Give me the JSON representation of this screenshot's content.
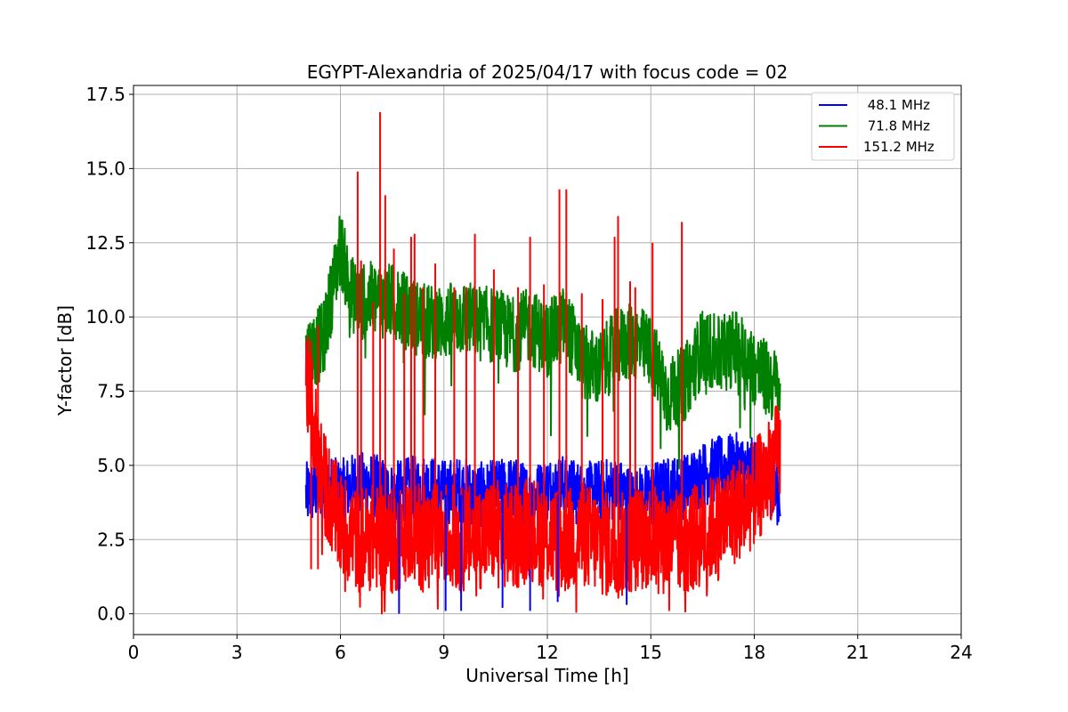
{
  "chart_data": {
    "type": "line",
    "title": "EGYPT-Alexandria of 2025/04/17 with focus code = 02",
    "xlabel": "Universal Time [h]",
    "ylabel": "Y-factor [dB]",
    "xlim": [
      0,
      24
    ],
    "ylim": [
      -0.7,
      17.8
    ],
    "xticks": [
      0,
      3,
      6,
      9,
      12,
      15,
      18,
      21,
      24
    ],
    "xtick_labels": [
      "0",
      "3",
      "6",
      "9",
      "12",
      "15",
      "18",
      "21",
      "24"
    ],
    "yticks": [
      0.0,
      2.5,
      5.0,
      7.5,
      10.0,
      12.5,
      15.0,
      17.5
    ],
    "ytick_labels": [
      "0.0",
      "2.5",
      "5.0",
      "7.5",
      "10.0",
      "12.5",
      "15.0",
      "17.5"
    ],
    "grid": true,
    "legend_position": "top-right",
    "x_start": 5.0,
    "x_end": 18.75,
    "series": [
      {
        "name": " 48.1 MHz",
        "color": "#0000ff",
        "x": [
          5.0,
          5.5,
          6.0,
          6.5,
          7.0,
          7.5,
          8.0,
          8.5,
          9.0,
          9.5,
          10.0,
          10.5,
          11.0,
          11.5,
          12.0,
          12.5,
          13.0,
          13.5,
          14.0,
          14.5,
          15.0,
          15.5,
          16.0,
          16.5,
          17.0,
          17.5,
          18.0,
          18.75
        ],
        "y": [
          4.0,
          4.3,
          4.1,
          4.4,
          4.3,
          4.0,
          4.2,
          4.3,
          4.1,
          4.2,
          4.0,
          4.1,
          4.2,
          3.9,
          4.2,
          4.3,
          4.0,
          4.1,
          4.2,
          3.8,
          4.0,
          4.2,
          4.3,
          4.7,
          4.9,
          5.0,
          4.8,
          4.0
        ]
      },
      {
        "name": " 71.8 MHz",
        "color": "#008000",
        "x": [
          5.0,
          5.5,
          6.0,
          6.3,
          6.6,
          7.0,
          7.5,
          8.0,
          8.5,
          9.0,
          9.5,
          10.0,
          10.5,
          11.0,
          11.5,
          12.0,
          12.5,
          13.0,
          13.5,
          14.0,
          14.5,
          15.0,
          15.5,
          16.0,
          16.5,
          17.0,
          17.5,
          18.0,
          18.75
        ],
        "y": [
          8.7,
          9.2,
          12.4,
          10.8,
          10.5,
          10.6,
          10.5,
          10.1,
          9.8,
          9.8,
          10.0,
          9.8,
          9.7,
          9.4,
          9.7,
          9.2,
          9.8,
          8.5,
          8.2,
          9.0,
          9.2,
          8.8,
          7.3,
          7.8,
          9.0,
          8.7,
          9.0,
          8.3,
          7.5
        ]
      },
      {
        "name": "151.2 MHz",
        "color": "#ff0000",
        "x": [
          5.0,
          5.5,
          6.0,
          6.5,
          7.0,
          7.5,
          8.0,
          8.5,
          9.0,
          9.5,
          10.0,
          10.5,
          11.0,
          11.5,
          12.0,
          12.5,
          13.0,
          13.5,
          14.0,
          14.5,
          15.0,
          15.5,
          16.0,
          16.5,
          17.0,
          17.5,
          18.0,
          18.75
        ],
        "y": [
          8.0,
          4.5,
          3.0,
          2.5,
          2.6,
          2.4,
          2.8,
          2.5,
          2.7,
          2.5,
          2.6,
          2.8,
          2.5,
          2.9,
          2.6,
          2.4,
          2.7,
          2.4,
          2.2,
          2.5,
          2.6,
          2.4,
          2.4,
          2.7,
          3.0,
          3.5,
          4.0,
          5.5
        ]
      }
    ],
    "spikes_151_2": [
      {
        "x": 5.15,
        "y": 9.2
      },
      {
        "x": 5.35,
        "y": 9.7
      },
      {
        "x": 6.5,
        "y": 14.9
      },
      {
        "x": 6.6,
        "y": 11.9
      },
      {
        "x": 6.95,
        "y": 10.5
      },
      {
        "x": 7.15,
        "y": 16.9
      },
      {
        "x": 7.3,
        "y": 14.1
      },
      {
        "x": 7.55,
        "y": 12.3
      },
      {
        "x": 7.85,
        "y": 10.8
      },
      {
        "x": 8.05,
        "y": 12.7
      },
      {
        "x": 8.15,
        "y": 12.8
      },
      {
        "x": 8.4,
        "y": 11.0
      },
      {
        "x": 8.75,
        "y": 11.8
      },
      {
        "x": 9.3,
        "y": 11.0
      },
      {
        "x": 9.65,
        "y": 11.0
      },
      {
        "x": 9.9,
        "y": 12.8
      },
      {
        "x": 10.45,
        "y": 11.6
      },
      {
        "x": 11.15,
        "y": 11.0
      },
      {
        "x": 11.5,
        "y": 12.7
      },
      {
        "x": 11.9,
        "y": 11.1
      },
      {
        "x": 12.35,
        "y": 14.3
      },
      {
        "x": 12.55,
        "y": 14.3
      },
      {
        "x": 13.0,
        "y": 10.8
      },
      {
        "x": 13.6,
        "y": 10.6
      },
      {
        "x": 13.95,
        "y": 12.7
      },
      {
        "x": 14.05,
        "y": 13.4
      },
      {
        "x": 14.4,
        "y": 11.2
      },
      {
        "x": 14.55,
        "y": 11.0
      },
      {
        "x": 15.05,
        "y": 12.5
      },
      {
        "x": 15.9,
        "y": 13.2
      }
    ],
    "dips_48_1": [
      {
        "x": 7.7,
        "y": 0.0
      },
      {
        "x": 9.05,
        "y": 0.1
      },
      {
        "x": 9.5,
        "y": 0.1
      },
      {
        "x": 10.7,
        "y": 0.2
      },
      {
        "x": 11.5,
        "y": 0.1
      },
      {
        "x": 12.3,
        "y": 0.4
      },
      {
        "x": 14.3,
        "y": 0.3
      }
    ]
  }
}
